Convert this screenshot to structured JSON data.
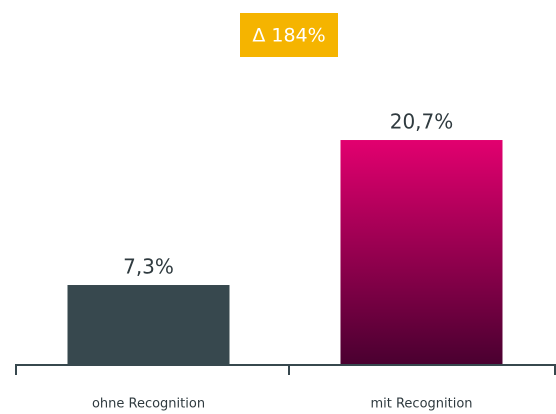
{
  "chart_data": {
    "type": "bar",
    "annotation": "Δ 184%",
    "categories": [
      "ohne Recognition",
      "mit Recognition"
    ],
    "values": [
      7.3,
      20.7
    ],
    "value_labels": [
      "7,3%",
      "20,7%"
    ],
    "colors": [
      [
        "#37484e",
        "#37484e"
      ],
      [
        "#e2006f",
        "#4a0030"
      ]
    ],
    "annotation_color": "#f5b400",
    "grid": false
  }
}
